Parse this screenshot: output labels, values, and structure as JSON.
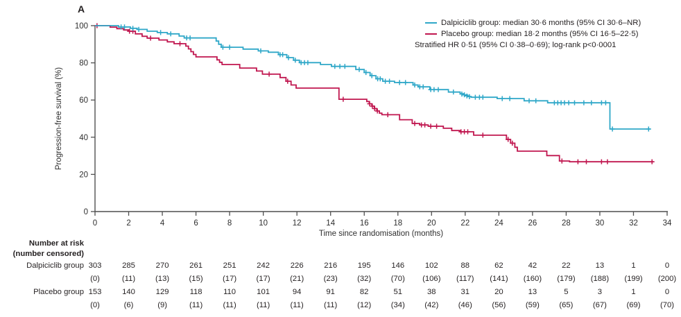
{
  "panel_label": "A",
  "colors": {
    "dalpiciclib": "#2ea7c8",
    "placebo": "#c0164f",
    "axis": "#4f4f4f",
    "text": "#2e2e2e"
  },
  "legend": {
    "items": [
      {
        "name": "Dalpiciclib group",
        "label": "Dalpiciclib group: median 30·6 months (95% CI 30·6–NR)",
        "color_key": "dalpiciclib"
      },
      {
        "name": "Placebo group",
        "label": "Placebo group: median 18·2 months (95% CI 16·5–22·5)",
        "color_key": "placebo"
      }
    ],
    "note": "Stratified HR 0·51 (95% CI 0·38–0·69); log-rank p<0·0001"
  },
  "chart_data": {
    "type": "line",
    "subtype": "kaplan-meier-step",
    "title": "",
    "xlabel": "Time since randomisation (months)",
    "ylabel": "Progression-free survival (%)",
    "xlim": [
      0,
      34
    ],
    "ylim": [
      0,
      100
    ],
    "xticks": [
      0,
      2,
      4,
      6,
      8,
      10,
      12,
      14,
      16,
      18,
      20,
      22,
      24,
      26,
      28,
      30,
      32,
      34
    ],
    "yticks": [
      0,
      20,
      40,
      60,
      80,
      100
    ],
    "grid": false,
    "legend_position": "top-right",
    "series": [
      {
        "name": "Dalpiciclib group",
        "color_key": "dalpiciclib",
        "median_months": "30·6",
        "ci": "30·6–NR",
        "end_x": 33.0,
        "steps": [
          [
            0,
            100
          ],
          [
            1.4,
            99.3
          ],
          [
            2.1,
            98.6
          ],
          [
            2.5,
            98
          ],
          [
            3.1,
            97
          ],
          [
            3.7,
            96.3
          ],
          [
            4.3,
            95.6
          ],
          [
            5,
            94.4
          ],
          [
            5.3,
            93.4
          ],
          [
            7.2,
            91.7
          ],
          [
            7.35,
            90
          ],
          [
            7.5,
            88.4
          ],
          [
            8.8,
            87.4
          ],
          [
            9.7,
            86.4
          ],
          [
            10.3,
            85.7
          ],
          [
            10.9,
            84.4
          ],
          [
            11.4,
            82.8
          ],
          [
            11.8,
            81.4
          ],
          [
            12.15,
            80.1
          ],
          [
            13.4,
            79.1
          ],
          [
            14.05,
            78.1
          ],
          [
            15.5,
            76.4
          ],
          [
            16,
            74.8
          ],
          [
            16.35,
            73.1
          ],
          [
            16.7,
            71.4
          ],
          [
            17.1,
            70.1
          ],
          [
            17.8,
            69.4
          ],
          [
            18.9,
            68.1
          ],
          [
            19.2,
            67.1
          ],
          [
            19.9,
            65.6
          ],
          [
            21,
            64.3
          ],
          [
            21.7,
            63.4
          ],
          [
            21.95,
            62.6
          ],
          [
            22.15,
            61.9
          ],
          [
            22.35,
            61.5
          ],
          [
            23.9,
            60.8
          ],
          [
            25.5,
            59.6
          ],
          [
            26.9,
            58.5
          ],
          [
            30.6,
            44.4
          ]
        ],
        "censors": [
          [
            1.55,
            99.3
          ],
          [
            1.75,
            99.3
          ],
          [
            2.25,
            98.6
          ],
          [
            2.6,
            98
          ],
          [
            3.9,
            96.3
          ],
          [
            4.5,
            95.6
          ],
          [
            5.45,
            93.4
          ],
          [
            5.65,
            93.4
          ],
          [
            7.6,
            88.4
          ],
          [
            8,
            88.4
          ],
          [
            9.85,
            86.4
          ],
          [
            11,
            84.4
          ],
          [
            11.15,
            84.4
          ],
          [
            11.5,
            82.8
          ],
          [
            11.9,
            81.4
          ],
          [
            12.25,
            80.1
          ],
          [
            12.45,
            80.1
          ],
          [
            12.65,
            80.1
          ],
          [
            14.25,
            78.1
          ],
          [
            14.55,
            78.1
          ],
          [
            14.85,
            78.1
          ],
          [
            15.7,
            76.4
          ],
          [
            16.1,
            74.8
          ],
          [
            16.45,
            73.1
          ],
          [
            16.8,
            71.4
          ],
          [
            16.95,
            71.4
          ],
          [
            17.25,
            70.1
          ],
          [
            17.5,
            70.1
          ],
          [
            18.1,
            69.4
          ],
          [
            18.45,
            69.4
          ],
          [
            19,
            68.1
          ],
          [
            19.3,
            67.1
          ],
          [
            19.5,
            67.1
          ],
          [
            19.95,
            65.6
          ],
          [
            20.15,
            65.6
          ],
          [
            20.4,
            65.6
          ],
          [
            21.3,
            64.3
          ],
          [
            21.8,
            63.2
          ],
          [
            21.95,
            62.8
          ],
          [
            22.1,
            62.2
          ],
          [
            22.25,
            61.8
          ],
          [
            22.6,
            61.5
          ],
          [
            22.85,
            61.5
          ],
          [
            23.05,
            61.5
          ],
          [
            24.2,
            60.8
          ],
          [
            24.65,
            60.8
          ],
          [
            25.8,
            59.6
          ],
          [
            26.2,
            59.6
          ],
          [
            27.3,
            58.5
          ],
          [
            27.5,
            58.5
          ],
          [
            27.7,
            58.5
          ],
          [
            27.9,
            58.5
          ],
          [
            28.15,
            58.5
          ],
          [
            28.5,
            58.5
          ],
          [
            29.05,
            58.5
          ],
          [
            29.5,
            58.5
          ],
          [
            30.1,
            58.5
          ],
          [
            30.35,
            58.5
          ],
          [
            30.75,
            44.4
          ],
          [
            32.9,
            44.4
          ]
        ]
      },
      {
        "name": "Placebo group",
        "color_key": "placebo",
        "median_months": "18·2",
        "ci": "16·5–22·5",
        "end_x": 33.2,
        "steps": [
          [
            0,
            100
          ],
          [
            0.9,
            99.2
          ],
          [
            1.3,
            98.4
          ],
          [
            1.7,
            97.7
          ],
          [
            2,
            97
          ],
          [
            2.4,
            95.6
          ],
          [
            2.8,
            94.3
          ],
          [
            3.1,
            93.3
          ],
          [
            3.8,
            92.3
          ],
          [
            4.3,
            91.3
          ],
          [
            4.7,
            90.3
          ],
          [
            5.4,
            89
          ],
          [
            5.55,
            87.5
          ],
          [
            5.7,
            86
          ],
          [
            5.85,
            84.5
          ],
          [
            6,
            83.2
          ],
          [
            7.25,
            81.6
          ],
          [
            7.4,
            80.3
          ],
          [
            7.55,
            79.1
          ],
          [
            8.6,
            77.2
          ],
          [
            9.6,
            75.6
          ],
          [
            9.95,
            73.9
          ],
          [
            11,
            72.1
          ],
          [
            11.35,
            70.1
          ],
          [
            11.65,
            68.1
          ],
          [
            11.95,
            66.4
          ],
          [
            14.5,
            60.4
          ],
          [
            16.15,
            59.2
          ],
          [
            16.3,
            58
          ],
          [
            16.45,
            56.7
          ],
          [
            16.6,
            55.4
          ],
          [
            16.75,
            54.1
          ],
          [
            16.9,
            52.9
          ],
          [
            17.05,
            52.1
          ],
          [
            18.1,
            49.4
          ],
          [
            18.85,
            47.4
          ],
          [
            19.3,
            46.6
          ],
          [
            19.8,
            45.9
          ],
          [
            20.7,
            44.8
          ],
          [
            21.2,
            43.6
          ],
          [
            21.7,
            42.9
          ],
          [
            22.5,
            41.1
          ],
          [
            24.45,
            38.8
          ],
          [
            24.7,
            36.8
          ],
          [
            24.95,
            34.6
          ],
          [
            25.1,
            32.5
          ],
          [
            26.85,
            30.1
          ],
          [
            27.6,
            27.2
          ],
          [
            28.2,
            26.8
          ]
        ],
        "censors": [
          [
            0.12,
            100
          ],
          [
            2.05,
            97
          ],
          [
            2.25,
            97
          ],
          [
            3.3,
            93.3
          ],
          [
            5.05,
            90.3
          ],
          [
            10.35,
            73.9
          ],
          [
            11.45,
            70.1
          ],
          [
            14.75,
            60.4
          ],
          [
            16.32,
            58
          ],
          [
            16.48,
            56.7
          ],
          [
            16.62,
            55.4
          ],
          [
            16.78,
            54.1
          ],
          [
            17.4,
            52.1
          ],
          [
            19,
            47.4
          ],
          [
            19.4,
            46.6
          ],
          [
            19.6,
            46.6
          ],
          [
            19.95,
            45.9
          ],
          [
            20.3,
            45.9
          ],
          [
            21.75,
            42.9
          ],
          [
            21.95,
            42.9
          ],
          [
            22.15,
            42.9
          ],
          [
            23.05,
            41.1
          ],
          [
            24.55,
            38.8
          ],
          [
            24.8,
            36.8
          ],
          [
            27.75,
            27.2
          ],
          [
            28.7,
            26.8
          ],
          [
            29.2,
            26.8
          ],
          [
            30.1,
            26.8
          ],
          [
            30.45,
            26.8
          ],
          [
            33.1,
            26.8
          ]
        ]
      }
    ],
    "annotations": [
      "Stratified HR 0·51 (95% CI 0·38–0·69); log-rank p<0·0001"
    ]
  },
  "risk_table": {
    "header_line1": "Number at risk",
    "header_line2": "(number censored)",
    "months": [
      0,
      2,
      4,
      6,
      8,
      10,
      12,
      14,
      16,
      18,
      20,
      22,
      24,
      26,
      28,
      30,
      32,
      34
    ],
    "rows": [
      {
        "label": "Dalpiciclib group",
        "at_risk": [
          "303",
          "285",
          "270",
          "261",
          "251",
          "242",
          "226",
          "216",
          "195",
          "146",
          "102",
          "88",
          "62",
          "42",
          "22",
          "13",
          "1",
          "0"
        ],
        "censored": [
          "(0)",
          "(11)",
          "(13)",
          "(15)",
          "(17)",
          "(17)",
          "(21)",
          "(23)",
          "(32)",
          "(70)",
          "(106)",
          "(117)",
          "(141)",
          "(160)",
          "(179)",
          "(188)",
          "(199)",
          "(200)"
        ]
      },
      {
        "label": "Placebo group",
        "at_risk": [
          "153",
          "140",
          "129",
          "118",
          "110",
          "101",
          "94",
          "91",
          "82",
          "51",
          "38",
          "31",
          "20",
          "13",
          "5",
          "3",
          "1",
          "0"
        ],
        "censored": [
          "(0)",
          "(6)",
          "(9)",
          "(11)",
          "(11)",
          "(11)",
          "(11)",
          "(11)",
          "(12)",
          "(34)",
          "(42)",
          "(46)",
          "(56)",
          "(59)",
          "(65)",
          "(67)",
          "(69)",
          "(70)"
        ]
      }
    ]
  }
}
